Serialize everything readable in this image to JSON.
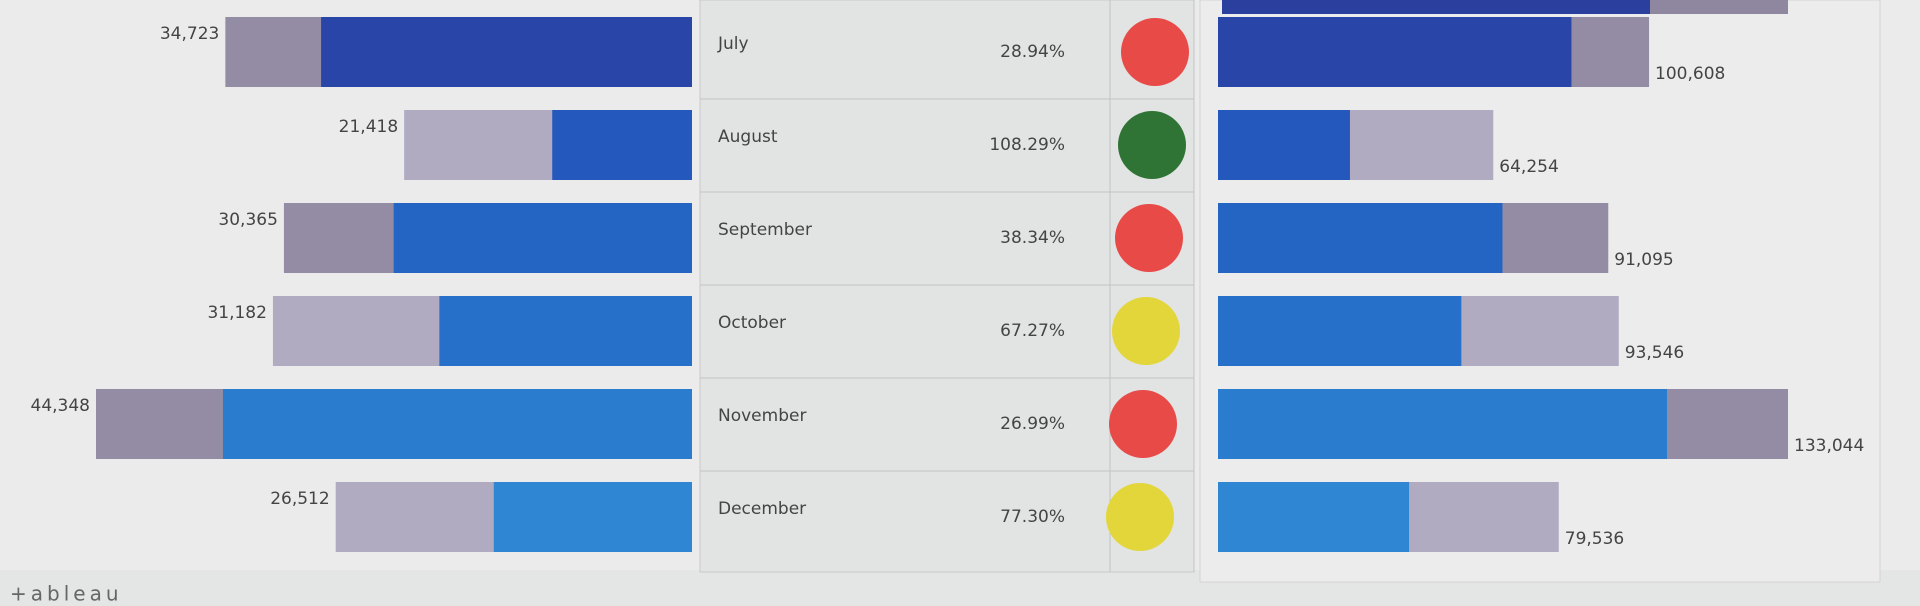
{
  "rows": [
    {
      "month": "July",
      "left_value": 34723,
      "left_label": "34,723",
      "left_blue": 27600,
      "percent": "28.94%",
      "status_color": "#e84a47",
      "right_value": 100608,
      "right_label": "100,608",
      "right_blue": 82500
    },
    {
      "month": "August",
      "left_value": 21418,
      "left_label": "21,418",
      "left_blue": 10400,
      "percent": "108.29%",
      "status_color": "#2f7434",
      "right_value": 64254,
      "right_label": "64,254",
      "right_blue": 30800
    },
    {
      "month": "September",
      "left_value": 30365,
      "left_label": "30,365",
      "left_blue": 22200,
      "percent": "38.34%",
      "status_color": "#e84a47",
      "right_value": 91095,
      "right_label": "91,095",
      "right_blue": 66400
    },
    {
      "month": "October",
      "left_value": 31182,
      "left_label": "31,182",
      "left_blue": 18800,
      "percent": "67.27%",
      "status_color": "#e3d63a",
      "right_value": 93546,
      "right_label": "93,546",
      "right_blue": 56800
    },
    {
      "month": "November",
      "left_value": 44348,
      "left_label": "44,348",
      "left_blue": 34900,
      "percent": "26.99%",
      "status_color": "#e84a47",
      "right_value": 133044,
      "right_label": "133,044",
      "right_blue": 104800
    },
    {
      "month": "December",
      "left_value": 26512,
      "left_label": "26,512",
      "left_blue": 14750,
      "percent": "77.30%",
      "status_color": "#e3d63a",
      "right_value": 79536,
      "right_label": "79,536",
      "right_blue": 44600
    }
  ],
  "footer": {
    "logo": "+ableau"
  }
}
